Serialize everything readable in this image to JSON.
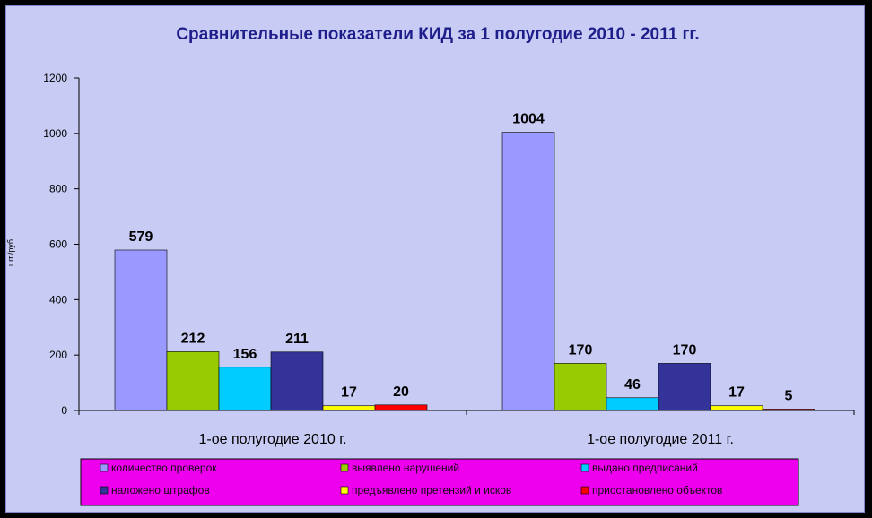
{
  "chart_data": {
    "type": "bar",
    "title": "Сравнительные показатели КИД за  1 полугодие 2010 - 2011 гг.",
    "xlabel": "",
    "ylabel": "шт./руб",
    "ylim": [
      0,
      1200
    ],
    "yticks": [
      0,
      200,
      400,
      600,
      800,
      1000,
      1200
    ],
    "grid": false,
    "legend_position": "bottom",
    "plot_background": "#c8ccf4",
    "legend_background": "#ee00ee",
    "categories": [
      "1-ое полугодие 2010 г.",
      "1-ое полугодие 2011 г."
    ],
    "series": [
      {
        "name": "количество проверок",
        "color": "#9999ff",
        "values": [
          579,
          1004
        ]
      },
      {
        "name": "выявлено нарушений",
        "color": "#99cc00",
        "values": [
          212,
          170
        ]
      },
      {
        "name": "выдано предписаний",
        "color": "#00ccff",
        "values": [
          156,
          46
        ]
      },
      {
        "name": "наложено штрафов",
        "color": "#333399",
        "values": [
          211,
          170
        ]
      },
      {
        "name": "предъявлено претензий и исков",
        "color": "#ffff00",
        "values": [
          17,
          17
        ]
      },
      {
        "name": "приостановлено объектов",
        "color": "#ff0000",
        "values": [
          20,
          5
        ]
      }
    ]
  }
}
